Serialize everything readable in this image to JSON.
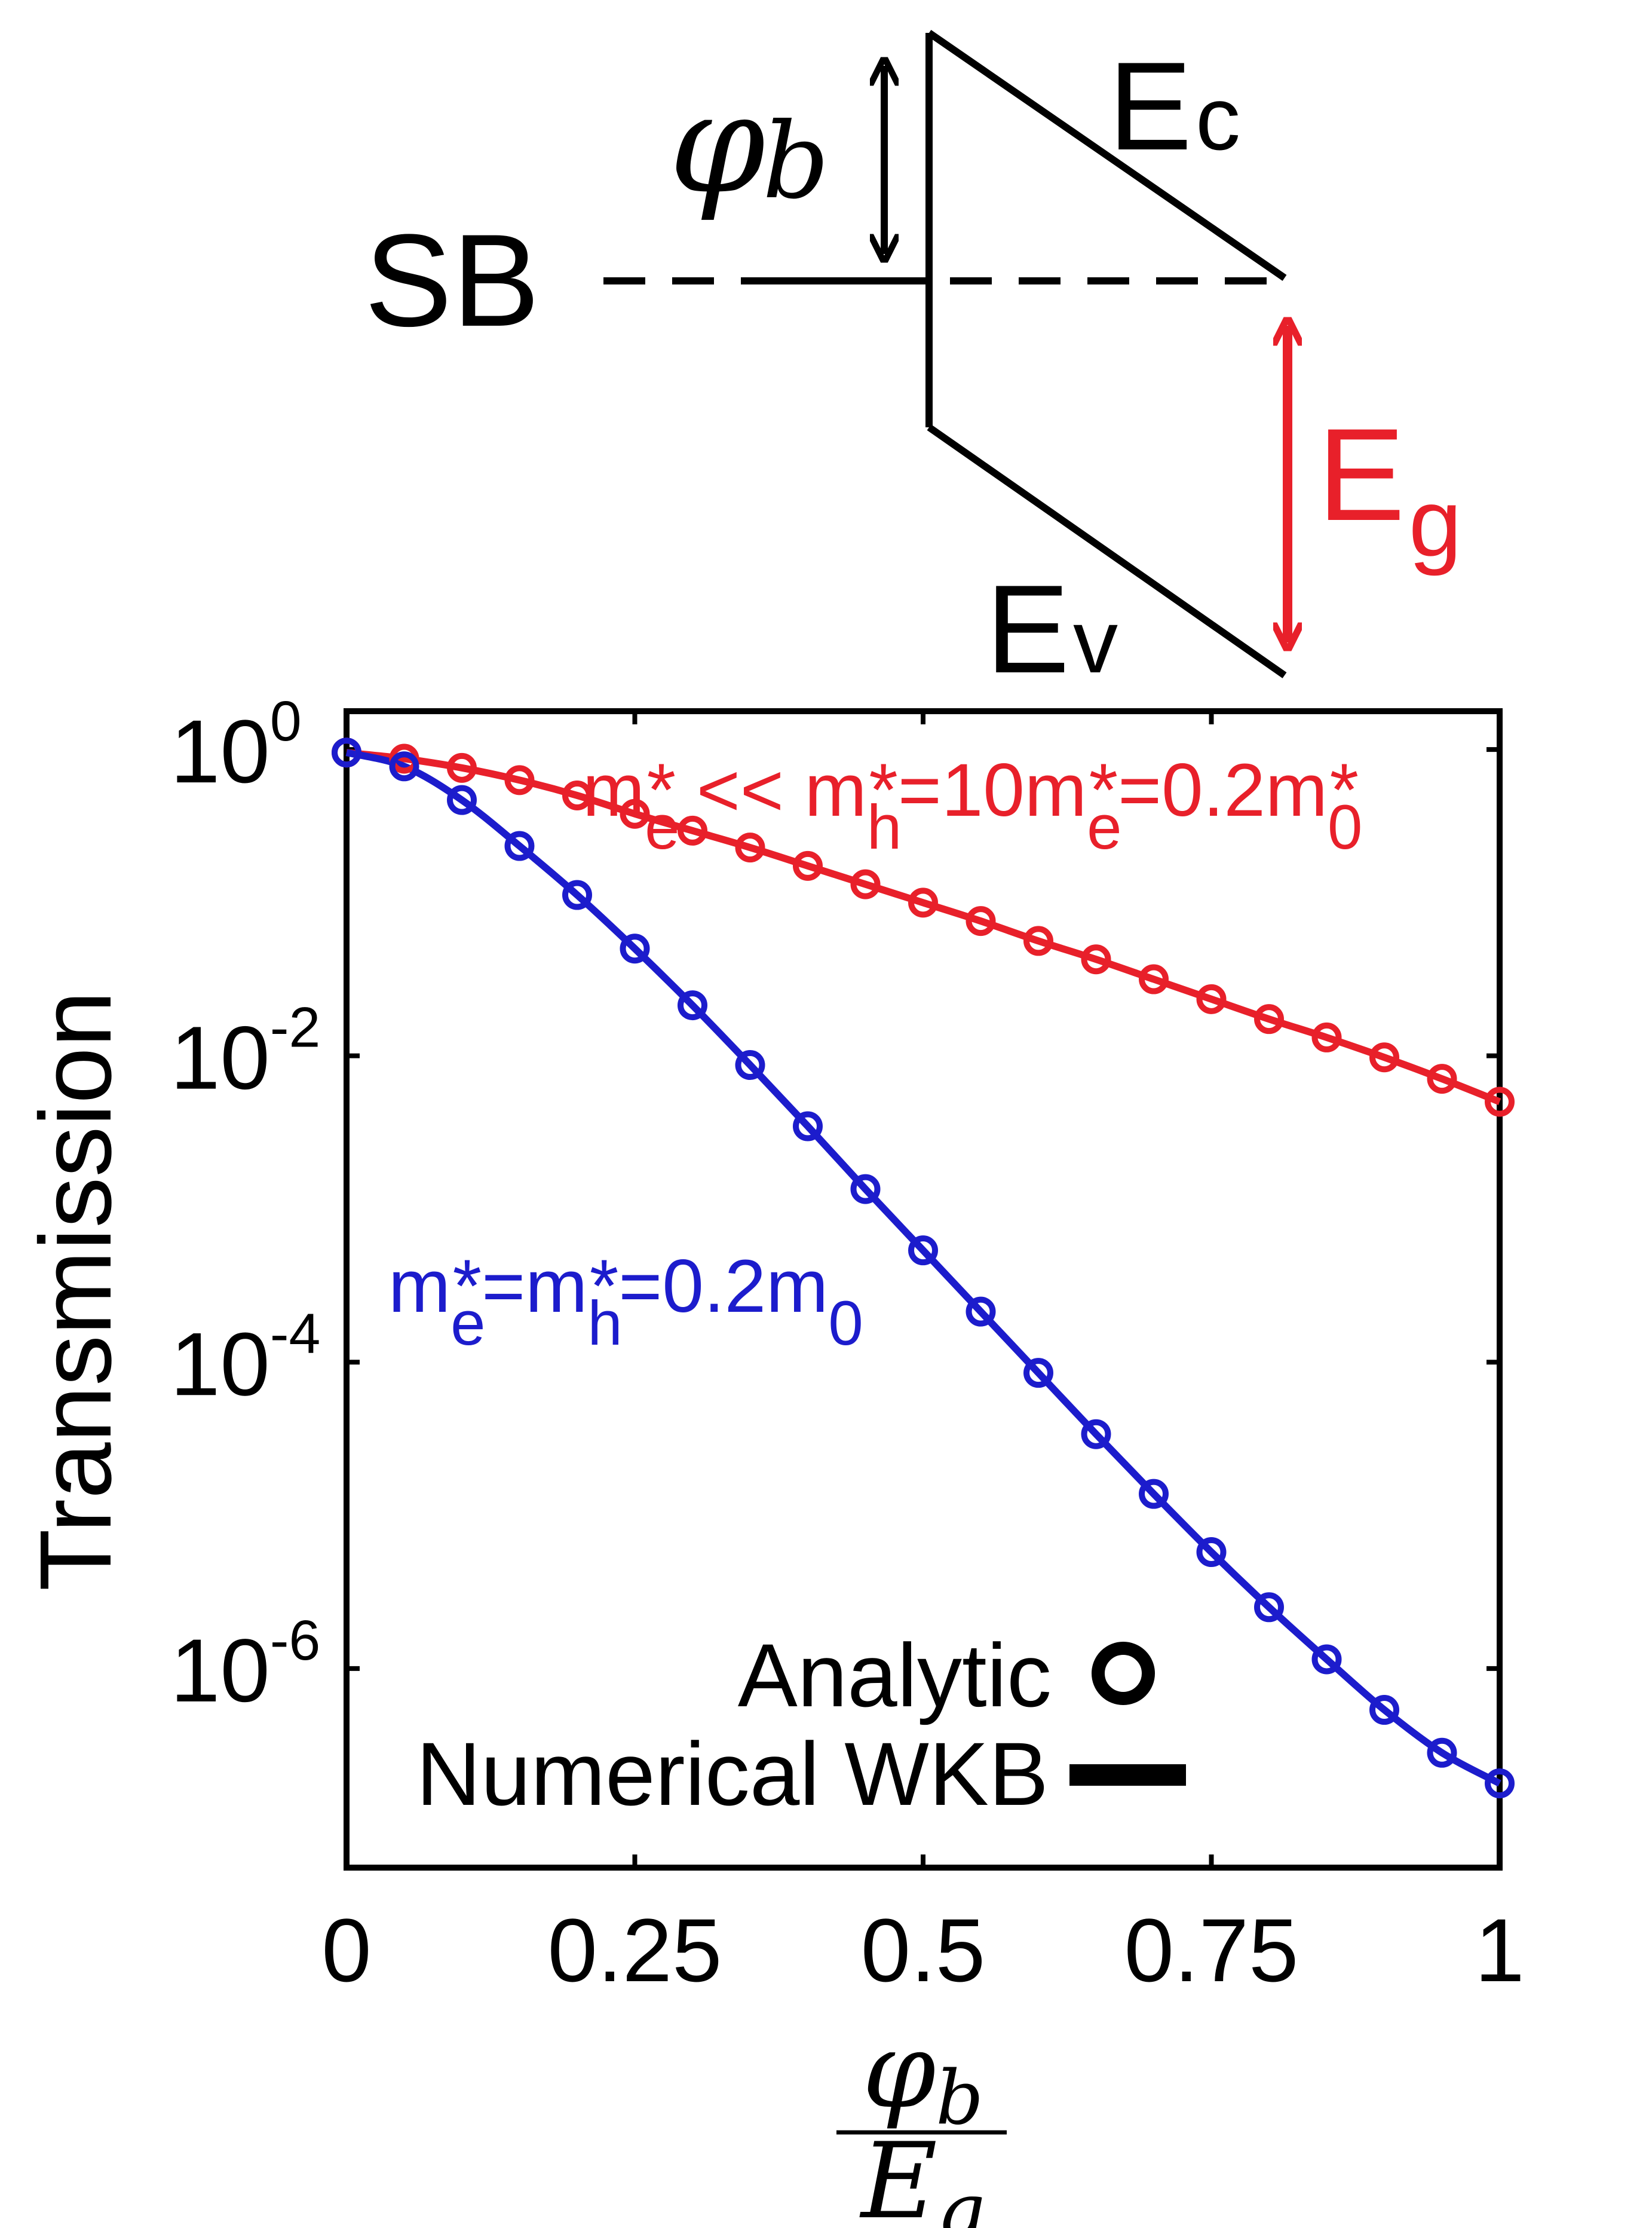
{
  "band_diagram": {
    "barrier_symbol": "φ",
    "barrier_subscript": "b",
    "level_label": "SB",
    "conduction_label_main": "E",
    "conduction_label_sub": "c",
    "valence_label_main": "E",
    "valence_label_sub": "v",
    "gap_label_main": "E",
    "gap_label_sub": "g",
    "gap_color": "#e8202a"
  },
  "chart_data": {
    "type": "line",
    "ylabel": "Transmission",
    "xlabel": {
      "numerator_symbol": "φ",
      "numerator_sub": "b",
      "denominator_symbol": "E",
      "denominator_sub": "g"
    },
    "xlim": [
      0,
      1
    ],
    "ylim_log10": [
      -7.3,
      0.25
    ],
    "yscale": "log",
    "x_ticks": [
      0,
      0.25,
      0.5,
      0.75,
      1
    ],
    "x_tick_labels": [
      "0",
      "0.25",
      "0.5",
      "0.75",
      "1"
    ],
    "y_ticks": [
      {
        "base": "10",
        "exp": "0",
        "log10": 0
      },
      {
        "base": "10",
        "exp": "-2",
        "log10": -2
      },
      {
        "base": "10",
        "exp": "-4",
        "log10": -4
      },
      {
        "base": "10",
        "exp": "-6",
        "log10": -6
      }
    ],
    "x": [
      0,
      0.05,
      0.1,
      0.15,
      0.2,
      0.25,
      0.3,
      0.35,
      0.4,
      0.45,
      0.5,
      0.55,
      0.6,
      0.65,
      0.7,
      0.75,
      0.8,
      0.85,
      0.9,
      0.95,
      1.0
    ],
    "series": [
      {
        "name": "red",
        "color": "#e8202a",
        "label_parts": [
          {
            "t": "m",
            "sub": "e",
            "sup": "*"
          },
          {
            "t": " << "
          },
          {
            "t": "m",
            "sub": "h",
            "sup": "*"
          },
          {
            "t": "=10"
          },
          {
            "t": "m",
            "sub": "e",
            "sup": "*"
          },
          {
            "t": "=0.2"
          },
          {
            "t": "m",
            "sub": "0",
            "sup": "*"
          }
        ],
        "log10_values": [
          -0.02,
          -0.06,
          -0.12,
          -0.2,
          -0.3,
          -0.42,
          -0.53,
          -0.64,
          -0.76,
          -0.88,
          -1.0,
          -1.12,
          -1.25,
          -1.37,
          -1.5,
          -1.63,
          -1.76,
          -1.88,
          -2.01,
          -2.15,
          -2.3
        ]
      },
      {
        "name": "blue",
        "color": "#1c1ccc",
        "label_parts": [
          {
            "t": "m",
            "sub": "e",
            "sup": "*"
          },
          {
            "t": "="
          },
          {
            "t": "m",
            "sub": "h",
            "sup": "*"
          },
          {
            "t": "=0.2"
          },
          {
            "t": "m",
            "sub": "0"
          }
        ],
        "log10_values": [
          -0.02,
          -0.11,
          -0.33,
          -0.63,
          -0.95,
          -1.3,
          -1.67,
          -2.06,
          -2.46,
          -2.87,
          -3.27,
          -3.67,
          -4.07,
          -4.47,
          -4.86,
          -5.24,
          -5.6,
          -5.94,
          -6.27,
          -6.55,
          -6.75
        ]
      }
    ],
    "legend": {
      "placement": "bottom-right",
      "marker_label": "Analytic",
      "line_label": "Numerical WKB"
    }
  }
}
